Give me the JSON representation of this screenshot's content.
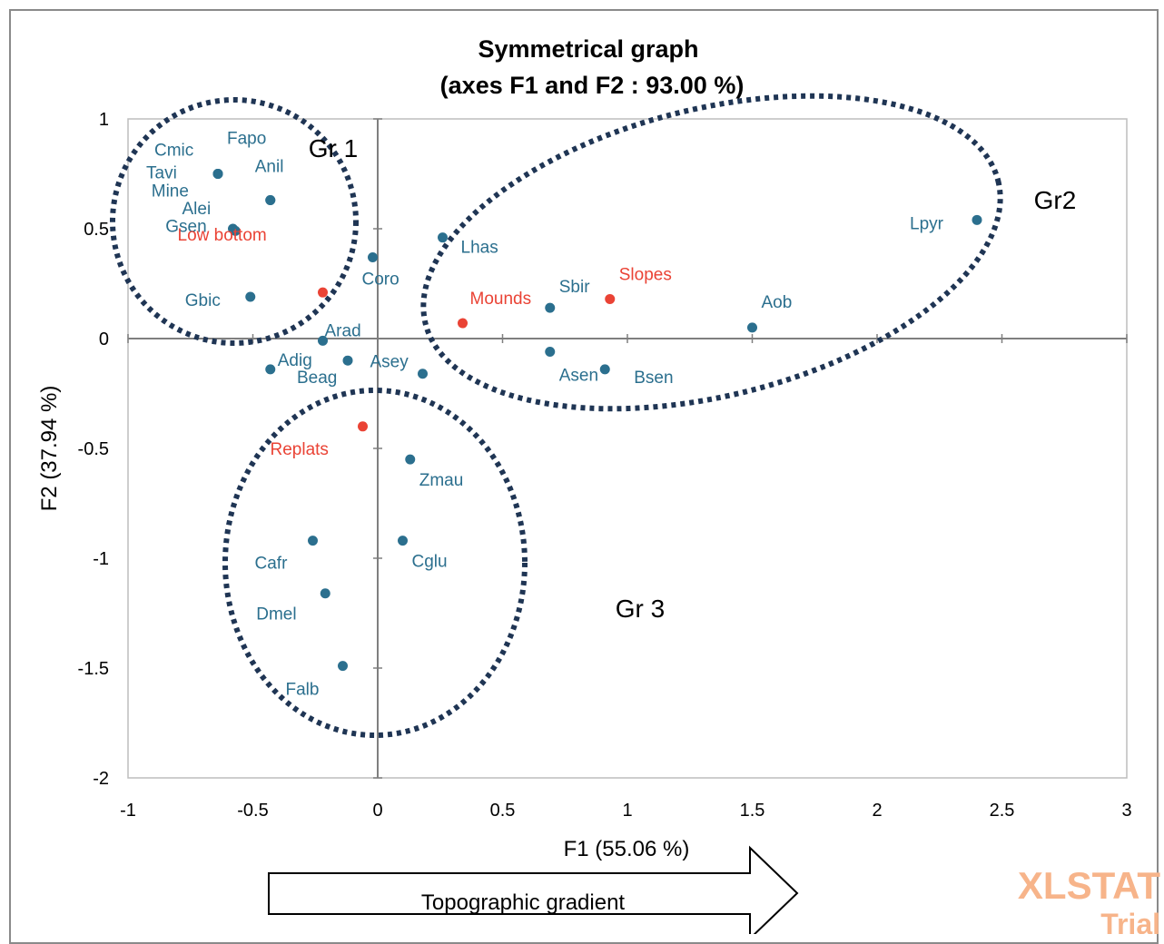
{
  "chart_data": {
    "type": "scatter",
    "title": "Symmetrical graph",
    "subtitle": "(axes F1  and F2  : 93.00 %)",
    "xlabel": "F1 (55.06 %)",
    "ylabel": "F2 (37.94 %)",
    "xlim": [
      -1,
      3
    ],
    "ylim": [
      -2,
      1
    ],
    "xticks": [
      "-1",
      "-0.5",
      "0",
      "0.5",
      "1",
      "1.5",
      "2",
      "2.5",
      "3"
    ],
    "yticks": [
      "1",
      "0.5",
      "0",
      "-0.5",
      "-1",
      "-1.5",
      "-2"
    ],
    "grid": false,
    "colors": {
      "species": "#2b6f8e",
      "sites": "#ea4335",
      "ellipse": "#1f3554"
    },
    "series": [
      {
        "points": [
          {
            "label": "Fapo",
            "x": -0.64,
            "y": 0.75
          },
          {
            "label": "Cmic",
            "x": -0.64,
            "y": 0.75
          },
          {
            "label": "Tavi",
            "x": -0.64,
            "y": 0.75
          },
          {
            "label": "Anil",
            "x": -0.43,
            "y": 0.63
          },
          {
            "label": "Mine",
            "x": -0.43,
            "y": 0.63
          },
          {
            "label": "Alei",
            "x": -0.58,
            "y": 0.5
          },
          {
            "label": "Gsen",
            "x": -0.57,
            "y": 0.49
          },
          {
            "label": "Gbic",
            "x": -0.51,
            "y": 0.19
          },
          {
            "label": "Coro",
            "x": -0.02,
            "y": 0.37
          },
          {
            "label": "Lhas",
            "x": 0.26,
            "y": 0.46
          },
          {
            "label": "Arad",
            "x": -0.22,
            "y": -0.01
          },
          {
            "label": "Adig",
            "x": -0.43,
            "y": -0.14
          },
          {
            "label": "Beag",
            "x": -0.12,
            "y": -0.1
          },
          {
            "label": "Asey",
            "x": 0.18,
            "y": -0.16
          },
          {
            "label": "Sbir",
            "x": 0.69,
            "y": 0.14
          },
          {
            "label": "Asen",
            "x": 0.69,
            "y": -0.06
          },
          {
            "label": "Bsen",
            "x": 0.91,
            "y": -0.14
          },
          {
            "label": "Aob",
            "x": 1.5,
            "y": 0.05
          },
          {
            "label": "Lpyr",
            "x": 2.4,
            "y": 0.54
          },
          {
            "label": "Zmau",
            "x": 0.13,
            "y": -0.55
          },
          {
            "label": "Cafr",
            "x": -0.26,
            "y": -0.92
          },
          {
            "label": "Cglu",
            "x": 0.1,
            "y": -0.92
          },
          {
            "label": "Dmel",
            "x": -0.21,
            "y": -1.16
          },
          {
            "label": "Falb",
            "x": -0.14,
            "y": -1.49
          }
        ]
      },
      {
        "points": [
          {
            "label": "Low bottom",
            "x": -0.22,
            "y": 0.21
          },
          {
            "label": "Mounds",
            "x": 0.34,
            "y": 0.07
          },
          {
            "label": "Slopes",
            "x": 0.93,
            "y": 0.18
          },
          {
            "label": "Replats",
            "x": -0.06,
            "y": -0.4
          }
        ]
      }
    ],
    "annotations": [
      "Gr 1",
      "Gr2",
      "Gr 3"
    ],
    "arrow_label": "Topographic gradient",
    "watermark": [
      "XLSTAT",
      "Trial"
    ]
  }
}
